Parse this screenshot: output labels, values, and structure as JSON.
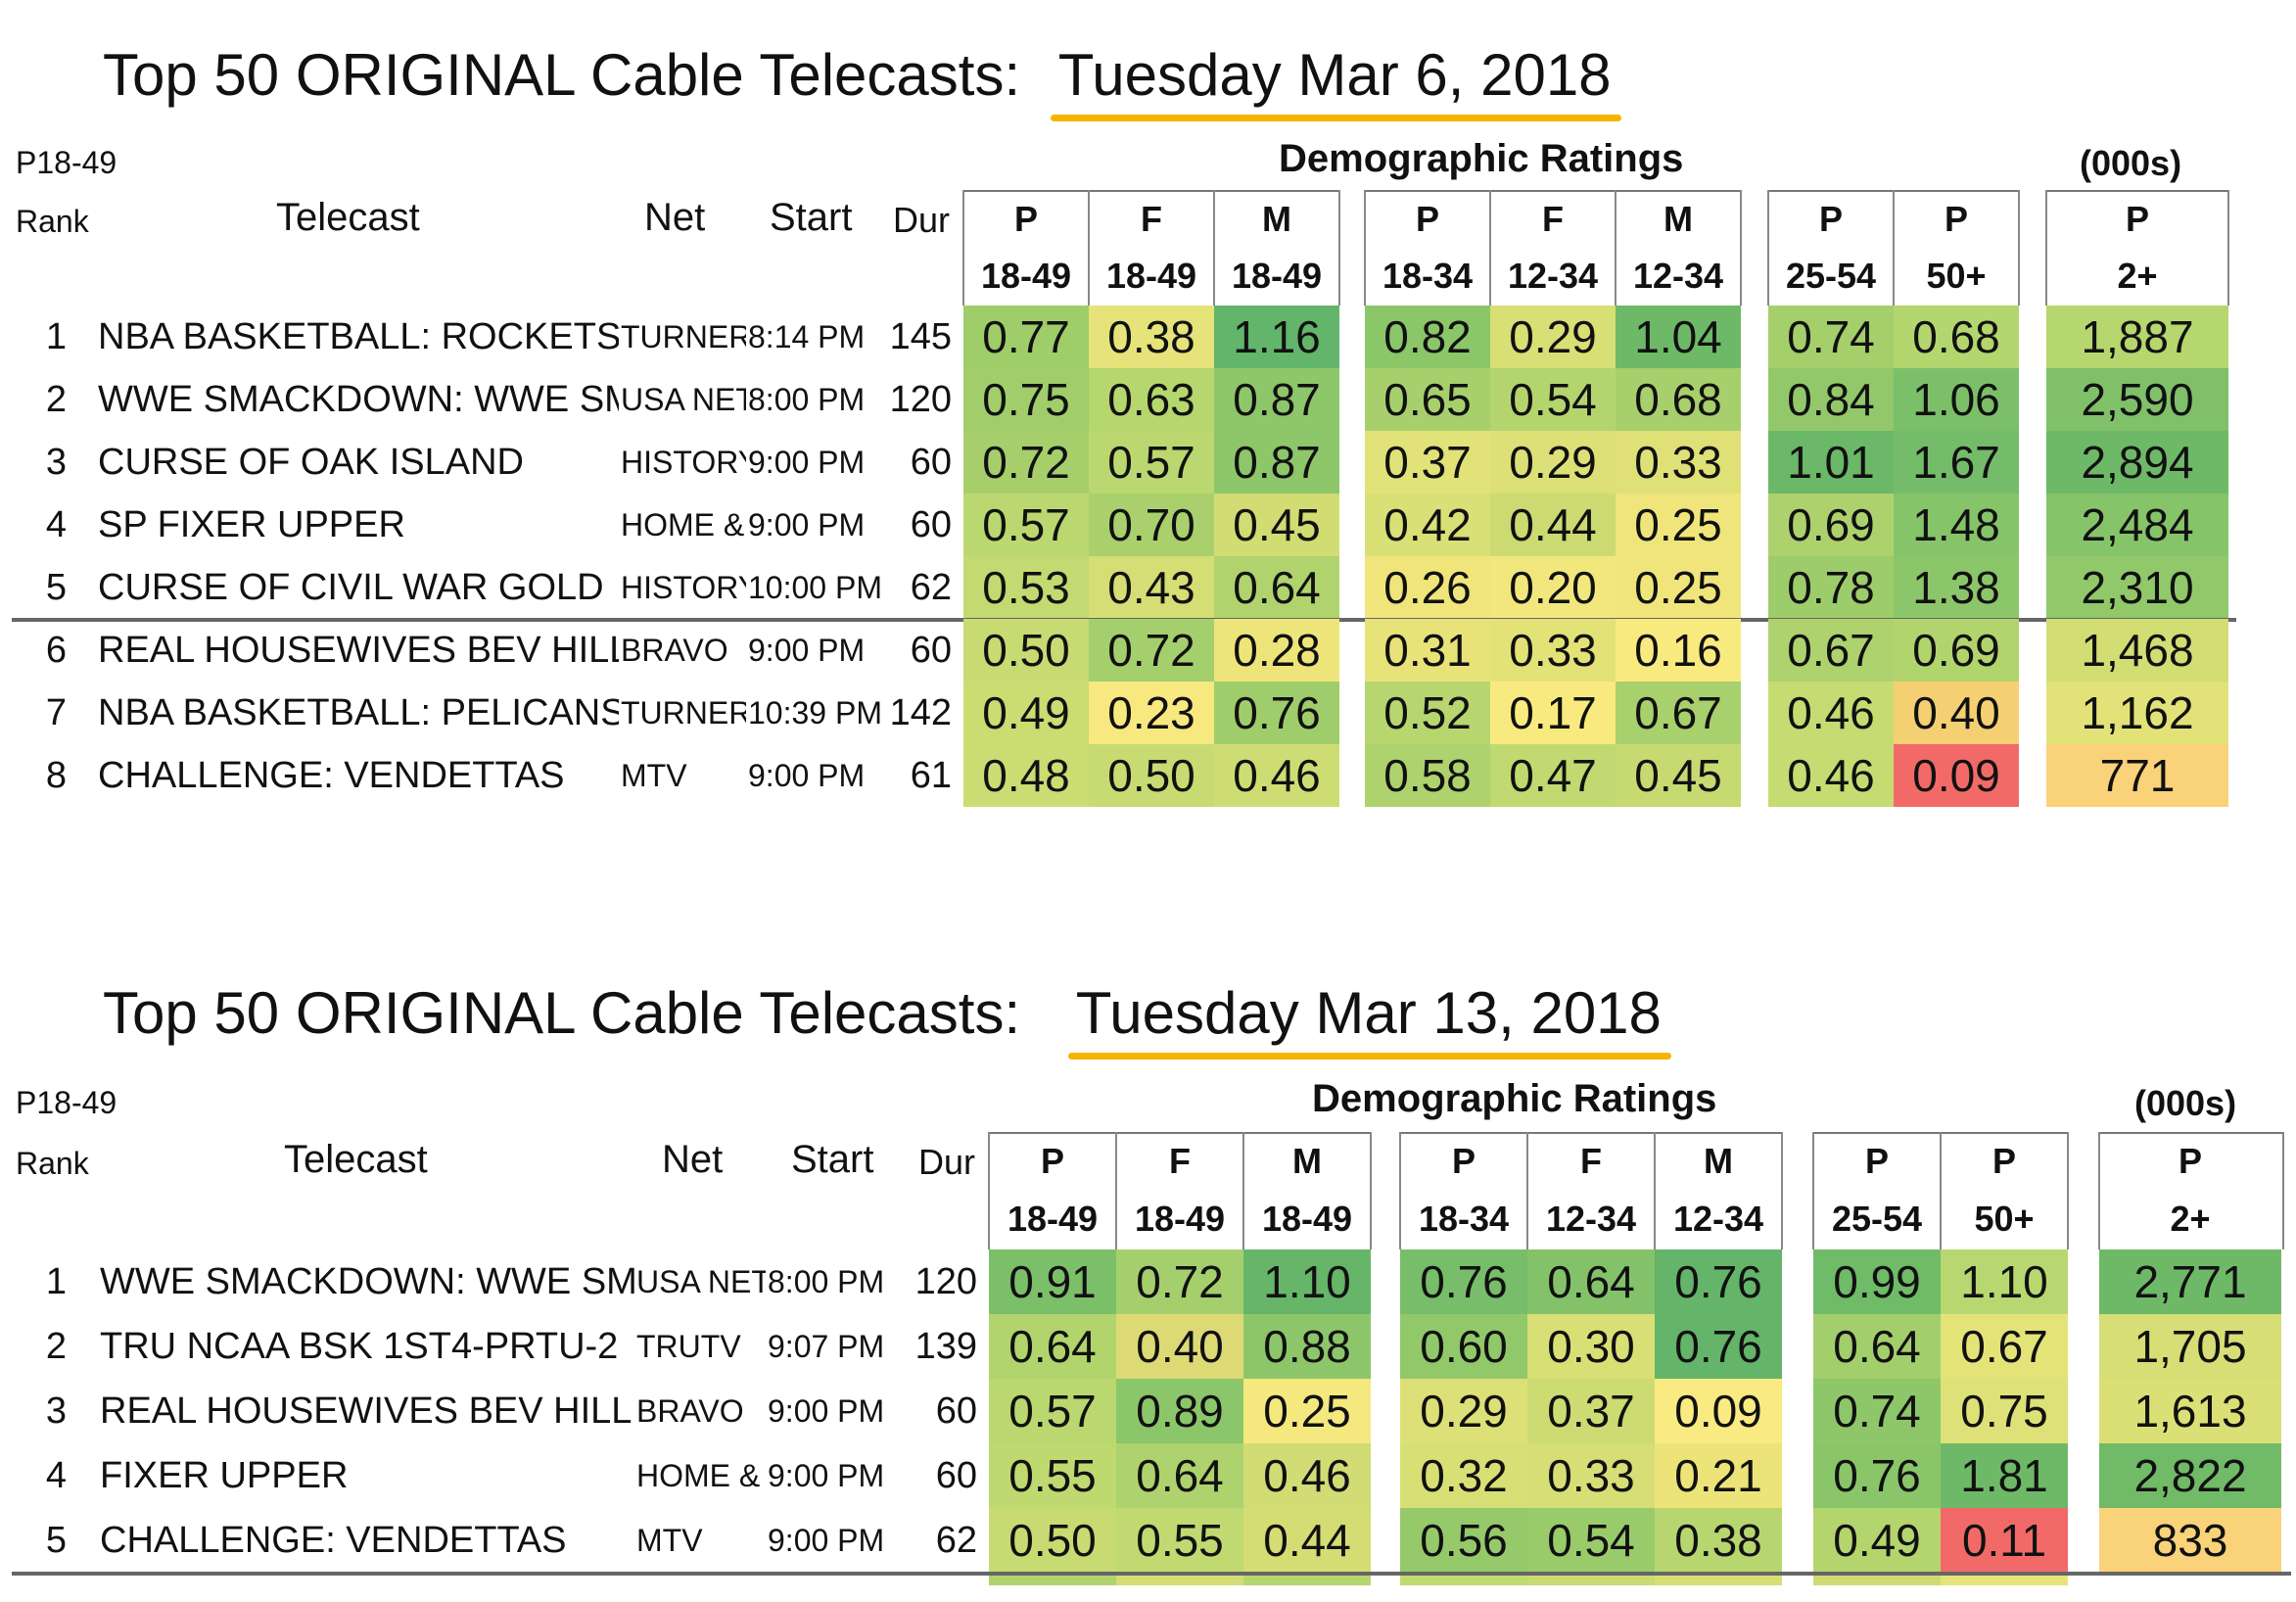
{
  "headers": {
    "p1849_label": "P18-49",
    "rank": "Rank",
    "telecast": "Telecast",
    "net": "Net",
    "start": "Start",
    "dur": "Dur",
    "demo": "Demographic Ratings",
    "thousands": "(000s)",
    "cols": [
      {
        "top": "P",
        "bottom": "18-49"
      },
      {
        "top": "F",
        "bottom": "18-49"
      },
      {
        "top": "M",
        "bottom": "18-49"
      },
      {
        "top": "P",
        "bottom": "18-34"
      },
      {
        "top": "F",
        "bottom": "12-34"
      },
      {
        "top": "M",
        "bottom": "12-34"
      },
      {
        "top": "P",
        "bottom": "25-54"
      },
      {
        "top": "P",
        "bottom": "50+"
      },
      {
        "top": "P",
        "bottom": "2+"
      }
    ]
  },
  "tables": [
    {
      "title_prefix": "Top 50 ORIGINAL Cable Telecasts:",
      "date": "Tuesday Mar 6, 2018",
      "rows": [
        {
          "rank": "1",
          "telecast": "NBA BASKETBALL: ROCKETS",
          "net": "TURNER",
          "start": "8:14 PM",
          "dur": "145",
          "vals": [
            "0.77",
            "0.38",
            "1.16",
            "0.82",
            "0.29",
            "1.04",
            "0.74",
            "0.68",
            "1,887"
          ],
          "colors": [
            "#9fcd6a",
            "#e6e37a",
            "#62b56a",
            "#8bc669",
            "#d8df74",
            "#6db968",
            "#a4cf6b",
            "#b3d66e",
            "#b6d66e"
          ]
        },
        {
          "rank": "2",
          "telecast": "WWE SMACKDOWN: WWE SM",
          "net": "USA NETWORK",
          "start": "8:00 PM",
          "dur": "120",
          "vals": [
            "0.75",
            "0.63",
            "0.87",
            "0.65",
            "0.54",
            "0.68",
            "0.84",
            "1.06",
            "2,590"
          ],
          "colors": [
            "#a1cd6b",
            "#b6d66e",
            "#8ec66a",
            "#a7d06c",
            "#b4d56e",
            "#a7cf6c",
            "#92c86a",
            "#7cbf69",
            "#7fc069"
          ]
        },
        {
          "rank": "3",
          "telecast": "CURSE OF OAK ISLAND",
          "net": "HISTORY",
          "start": "9:00 PM",
          "dur": "60",
          "vals": [
            "0.72",
            "0.57",
            "0.87",
            "0.37",
            "0.29",
            "0.33",
            "1.01",
            "1.67",
            "2,894"
          ],
          "colors": [
            "#a6cf6c",
            "#bbd870",
            "#8ec66a",
            "#e1e277",
            "#dce077",
            "#dfe177",
            "#6ab868",
            "#74bc69",
            "#6eb968"
          ]
        },
        {
          "rank": "4",
          "telecast": "SP FIXER UPPER",
          "net": "HOME & GARDEN",
          "start": "9:00 PM",
          "dur": "60",
          "vals": [
            "0.57",
            "0.70",
            "0.45",
            "0.42",
            "0.44",
            "0.25",
            "0.69",
            "1.48",
            "2,484"
          ],
          "colors": [
            "#bbd870",
            "#a9d06c",
            "#d1dc73",
            "#d9e075",
            "#ccda72",
            "#f0e57b",
            "#add26d",
            "#86c46a",
            "#86c46a"
          ]
        },
        {
          "rank": "5",
          "telecast": "CURSE OF CIVIL WAR GOLD",
          "net": "HISTORY",
          "start": "10:00 PM",
          "dur": "62",
          "vals": [
            "0.53",
            "0.43",
            "0.64",
            "0.26",
            "0.20",
            "0.25",
            "0.78",
            "1.38",
            "2,310"
          ],
          "colors": [
            "#c2da71",
            "#d4de74",
            "#b1d36d",
            "#efe57b",
            "#f2e77d",
            "#f0e57b",
            "#9dcc6b",
            "#8cc66a",
            "#91c86a"
          ]
        },
        {
          "rank": "6",
          "telecast": "REAL HOUSEWIVES BEV HILL",
          "net": "BRAVO",
          "start": "9:00 PM",
          "dur": "60",
          "vals": [
            "0.50",
            "0.72",
            "0.28",
            "0.31",
            "0.33",
            "0.16",
            "0.67",
            "0.69",
            "1,468"
          ],
          "colors": [
            "#c8db72",
            "#a5cf6c",
            "#eee57a",
            "#e7e379",
            "#e2e277",
            "#f9ea80",
            "#aed26d",
            "#b1d46d",
            "#d2dd74"
          ]
        },
        {
          "rank": "7",
          "telecast": "NBA BASKETBALL: PELICANS",
          "net": "TURNER",
          "start": "10:39 PM",
          "dur": "142",
          "vals": [
            "0.49",
            "0.23",
            "0.76",
            "0.52",
            "0.17",
            "0.67",
            "0.46",
            "0.40",
            "1,162"
          ],
          "colors": [
            "#cadc72",
            "#f7e97f",
            "#9fcd6b",
            "#b7d66f",
            "#f9ea80",
            "#a8d06c",
            "#c6db72",
            "#f5d072",
            "#e2e279"
          ]
        },
        {
          "rank": "8",
          "telecast": "CHALLENGE: VENDETTAS",
          "net": "MTV",
          "start": "9:00 PM",
          "dur": "61",
          "vals": [
            "0.48",
            "0.50",
            "0.46",
            "0.58",
            "0.47",
            "0.45",
            "0.46",
            "0.09",
            "771"
          ],
          "colors": [
            "#cbdc73",
            "#c8db72",
            "#cedd73",
            "#aed26d",
            "#c1d971",
            "#c7da72",
            "#c6db72",
            "#f26a68",
            "#f9d27a"
          ]
        }
      ]
    },
    {
      "title_prefix": "Top 50 ORIGINAL Cable Telecasts:",
      "date": "Tuesday Mar 13, 2018",
      "rows": [
        {
          "rank": "1",
          "telecast": "WWE SMACKDOWN: WWE SM",
          "net": "USA NETWORK",
          "start": "8:00 PM",
          "dur": "120",
          "vals": [
            "0.91",
            "0.72",
            "1.10",
            "0.76",
            "0.64",
            "0.76",
            "0.99",
            "1.10",
            "2,771"
          ],
          "colors": [
            "#7cbf69",
            "#a5cf6c",
            "#66b568",
            "#78bd69",
            "#84c26a",
            "#64b469",
            "#6fbb68",
            "#b9d770",
            "#6eb968"
          ]
        },
        {
          "rank": "2",
          "telecast": "TRU NCAA BSK 1ST4-PRTU-2",
          "net": "TRUTV",
          "start": "9:07 PM",
          "dur": "139",
          "vals": [
            "0.64",
            "0.40",
            "0.88",
            "0.60",
            "0.30",
            "0.76",
            "0.64",
            "0.67",
            "1,705"
          ],
          "colors": [
            "#b2d46d",
            "#ddda76",
            "#8dc66a",
            "#91c86a",
            "#d8df74",
            "#64b469",
            "#a3ce6c",
            "#e4e378",
            "#d6de75"
          ]
        },
        {
          "rank": "3",
          "telecast": "REAL HOUSEWIVES BEV HILL",
          "net": "BRAVO",
          "start": "9:00 PM",
          "dur": "60",
          "vals": [
            "0.57",
            "0.89",
            "0.25",
            "0.29",
            "0.37",
            "0.09",
            "0.74",
            "0.75",
            "1,613"
          ],
          "colors": [
            "#bbd870",
            "#8bc66a",
            "#f5e87f",
            "#dde076",
            "#cddb73",
            "#f9ea82",
            "#8ec66a",
            "#dde177",
            "#dbe076"
          ]
        },
        {
          "rank": "4",
          "telecast": "FIXER UPPER",
          "net": "HOME & GARDEN",
          "start": "9:00 PM",
          "dur": "60",
          "vals": [
            "0.55",
            "0.64",
            "0.46",
            "0.32",
            "0.33",
            "0.21",
            "0.76",
            "1.81",
            "2,822"
          ],
          "colors": [
            "#bfd971",
            "#aed26d",
            "#d1dc74",
            "#d8df75",
            "#d6de75",
            "#ece479",
            "#8ac569",
            "#6eb968",
            "#71ba68"
          ]
        },
        {
          "rank": "5",
          "telecast": "CHALLENGE: VENDETTAS",
          "net": "MTV",
          "start": "9:00 PM",
          "dur": "62",
          "vals": [
            "0.50",
            "0.55",
            "0.44",
            "0.56",
            "0.54",
            "0.38",
            "0.49",
            "0.11",
            "833"
          ],
          "colors": [
            "#c8db72",
            "#c0d971",
            "#d3dd74",
            "#96c96a",
            "#99cb6b",
            "#b8d66f",
            "#b4d46e",
            "#f26a68",
            "#f9d27a"
          ]
        }
      ]
    }
  ]
}
